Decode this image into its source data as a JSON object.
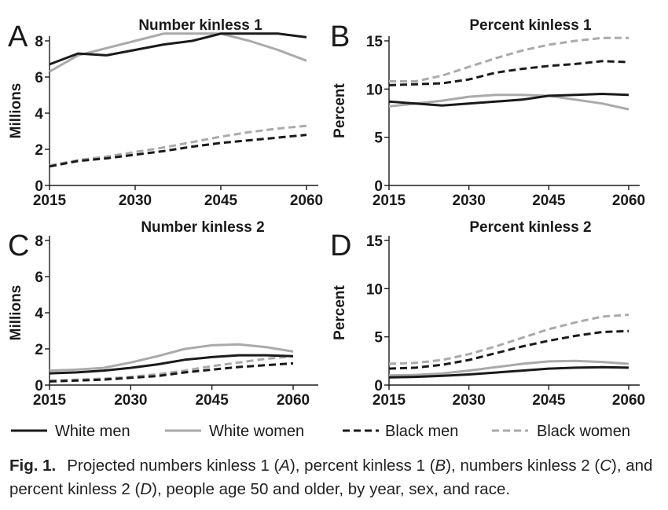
{
  "figure": {
    "caption": {
      "label": "Fig. 1.",
      "segments": [
        {
          "text": "Projected numbers kinless 1 (",
          "italic": false
        },
        {
          "text": "A",
          "italic": true
        },
        {
          "text": "), percent kinless 1 (",
          "italic": false
        },
        {
          "text": "B",
          "italic": true
        },
        {
          "text": "), numbers kinless 2 (",
          "italic": false
        },
        {
          "text": "C",
          "italic": true
        },
        {
          "text": "), and percent kinless 2 (",
          "italic": false
        },
        {
          "text": "D",
          "italic": true
        },
        {
          "text": "), people age 50 and older, by year, sex, and race.",
          "italic": false
        }
      ]
    },
    "legend": [
      {
        "name": "White men",
        "color": "#1a1a1a",
        "dash": "solid"
      },
      {
        "name": "White women",
        "color": "#aaaaaa",
        "dash": "solid"
      },
      {
        "name": "Black men",
        "color": "#1a1a1a",
        "dash": "dashed"
      },
      {
        "name": "Black women",
        "color": "#aaaaaa",
        "dash": "dashed"
      }
    ]
  },
  "chart_data": [
    {
      "type": "line",
      "panel_letter": "A",
      "title": "Number kinless 1",
      "ylabel": "Millions",
      "xlabel": "",
      "xlim": [
        2015,
        2060
      ],
      "ylim": [
        0,
        8.5
      ],
      "xticks": [
        2015,
        2030,
        2045,
        2060
      ],
      "yticks": [
        0,
        2,
        4,
        6,
        8
      ],
      "x": [
        2015,
        2020,
        2025,
        2030,
        2035,
        2040,
        2045,
        2050,
        2055,
        2060
      ],
      "series": [
        {
          "name": "White men",
          "values": [
            6.7,
            7.3,
            7.2,
            7.5,
            7.8,
            8.0,
            8.4,
            8.4,
            8.4,
            8.2
          ]
        },
        {
          "name": "White women",
          "values": [
            6.3,
            7.2,
            7.6,
            8.0,
            8.4,
            8.4,
            8.4,
            8.0,
            7.5,
            6.9
          ]
        },
        {
          "name": "Black men",
          "values": [
            1.05,
            1.35,
            1.5,
            1.7,
            1.9,
            2.15,
            2.35,
            2.5,
            2.65,
            2.8
          ]
        },
        {
          "name": "Black women",
          "values": [
            1.1,
            1.4,
            1.6,
            1.85,
            2.1,
            2.4,
            2.7,
            2.95,
            3.15,
            3.3
          ]
        }
      ]
    },
    {
      "type": "line",
      "panel_letter": "B",
      "title": "Percent kinless 1",
      "ylabel": "Percent",
      "xlabel": "",
      "xlim": [
        2015,
        2060
      ],
      "ylim": [
        0,
        15.5
      ],
      "xticks": [
        2015,
        2030,
        2045,
        2060
      ],
      "yticks": [
        0,
        5,
        10,
        15
      ],
      "x": [
        2015,
        2020,
        2025,
        2030,
        2035,
        2040,
        2045,
        2050,
        2055,
        2060
      ],
      "series": [
        {
          "name": "White men",
          "values": [
            8.7,
            8.5,
            8.3,
            8.5,
            8.7,
            8.9,
            9.3,
            9.4,
            9.5,
            9.4
          ]
        },
        {
          "name": "White women",
          "values": [
            8.2,
            8.5,
            8.8,
            9.2,
            9.4,
            9.4,
            9.3,
            8.9,
            8.5,
            7.9
          ]
        },
        {
          "name": "Black men",
          "values": [
            10.4,
            10.5,
            10.6,
            11.0,
            11.7,
            12.1,
            12.4,
            12.6,
            12.9,
            12.8
          ]
        },
        {
          "name": "Black women",
          "values": [
            10.8,
            10.8,
            11.4,
            12.3,
            13.2,
            14.0,
            14.6,
            15.0,
            15.3,
            15.3
          ]
        }
      ]
    },
    {
      "type": "line",
      "panel_letter": "C",
      "title": "Number kinless 2",
      "ylabel": "Millions",
      "xlabel": "",
      "xlim": [
        2015,
        2060
      ],
      "ylim": [
        0,
        8
      ],
      "xticks": [
        2015,
        2030,
        2045,
        2060
      ],
      "yticks": [
        0,
        2,
        4,
        6,
        8
      ],
      "x": [
        2015,
        2020,
        2025,
        2030,
        2035,
        2040,
        2045,
        2050,
        2055,
        2060
      ],
      "series": [
        {
          "name": "White men",
          "values": [
            0.65,
            0.7,
            0.8,
            0.95,
            1.15,
            1.4,
            1.55,
            1.65,
            1.65,
            1.6
          ]
        },
        {
          "name": "White women",
          "values": [
            0.8,
            0.85,
            0.95,
            1.25,
            1.6,
            2.0,
            2.2,
            2.25,
            2.1,
            1.85
          ]
        },
        {
          "name": "Black men",
          "values": [
            0.2,
            0.25,
            0.3,
            0.4,
            0.5,
            0.7,
            0.85,
            1.0,
            1.1,
            1.2
          ]
        },
        {
          "name": "Black women",
          "values": [
            0.25,
            0.3,
            0.35,
            0.45,
            0.6,
            0.8,
            1.05,
            1.25,
            1.45,
            1.6
          ]
        }
      ]
    },
    {
      "type": "line",
      "panel_letter": "D",
      "title": "Percent kinless 2",
      "ylabel": "Percent",
      "xlabel": "",
      "xlim": [
        2015,
        2060
      ],
      "ylim": [
        0,
        15
      ],
      "xticks": [
        2015,
        2030,
        2045,
        2060
      ],
      "yticks": [
        0,
        5,
        10,
        15
      ],
      "x": [
        2015,
        2020,
        2025,
        2030,
        2035,
        2040,
        2045,
        2050,
        2055,
        2060
      ],
      "series": [
        {
          "name": "White men",
          "values": [
            0.8,
            0.85,
            0.95,
            1.1,
            1.3,
            1.5,
            1.7,
            1.8,
            1.85,
            1.8
          ]
        },
        {
          "name": "White women",
          "values": [
            1.0,
            1.05,
            1.2,
            1.5,
            1.85,
            2.2,
            2.45,
            2.5,
            2.4,
            2.2
          ]
        },
        {
          "name": "Black men",
          "values": [
            1.7,
            1.8,
            2.1,
            2.6,
            3.3,
            4.0,
            4.6,
            5.1,
            5.5,
            5.6
          ]
        },
        {
          "name": "Black women",
          "values": [
            2.2,
            2.3,
            2.6,
            3.2,
            4.0,
            4.9,
            5.8,
            6.5,
            7.1,
            7.3
          ]
        }
      ]
    }
  ]
}
